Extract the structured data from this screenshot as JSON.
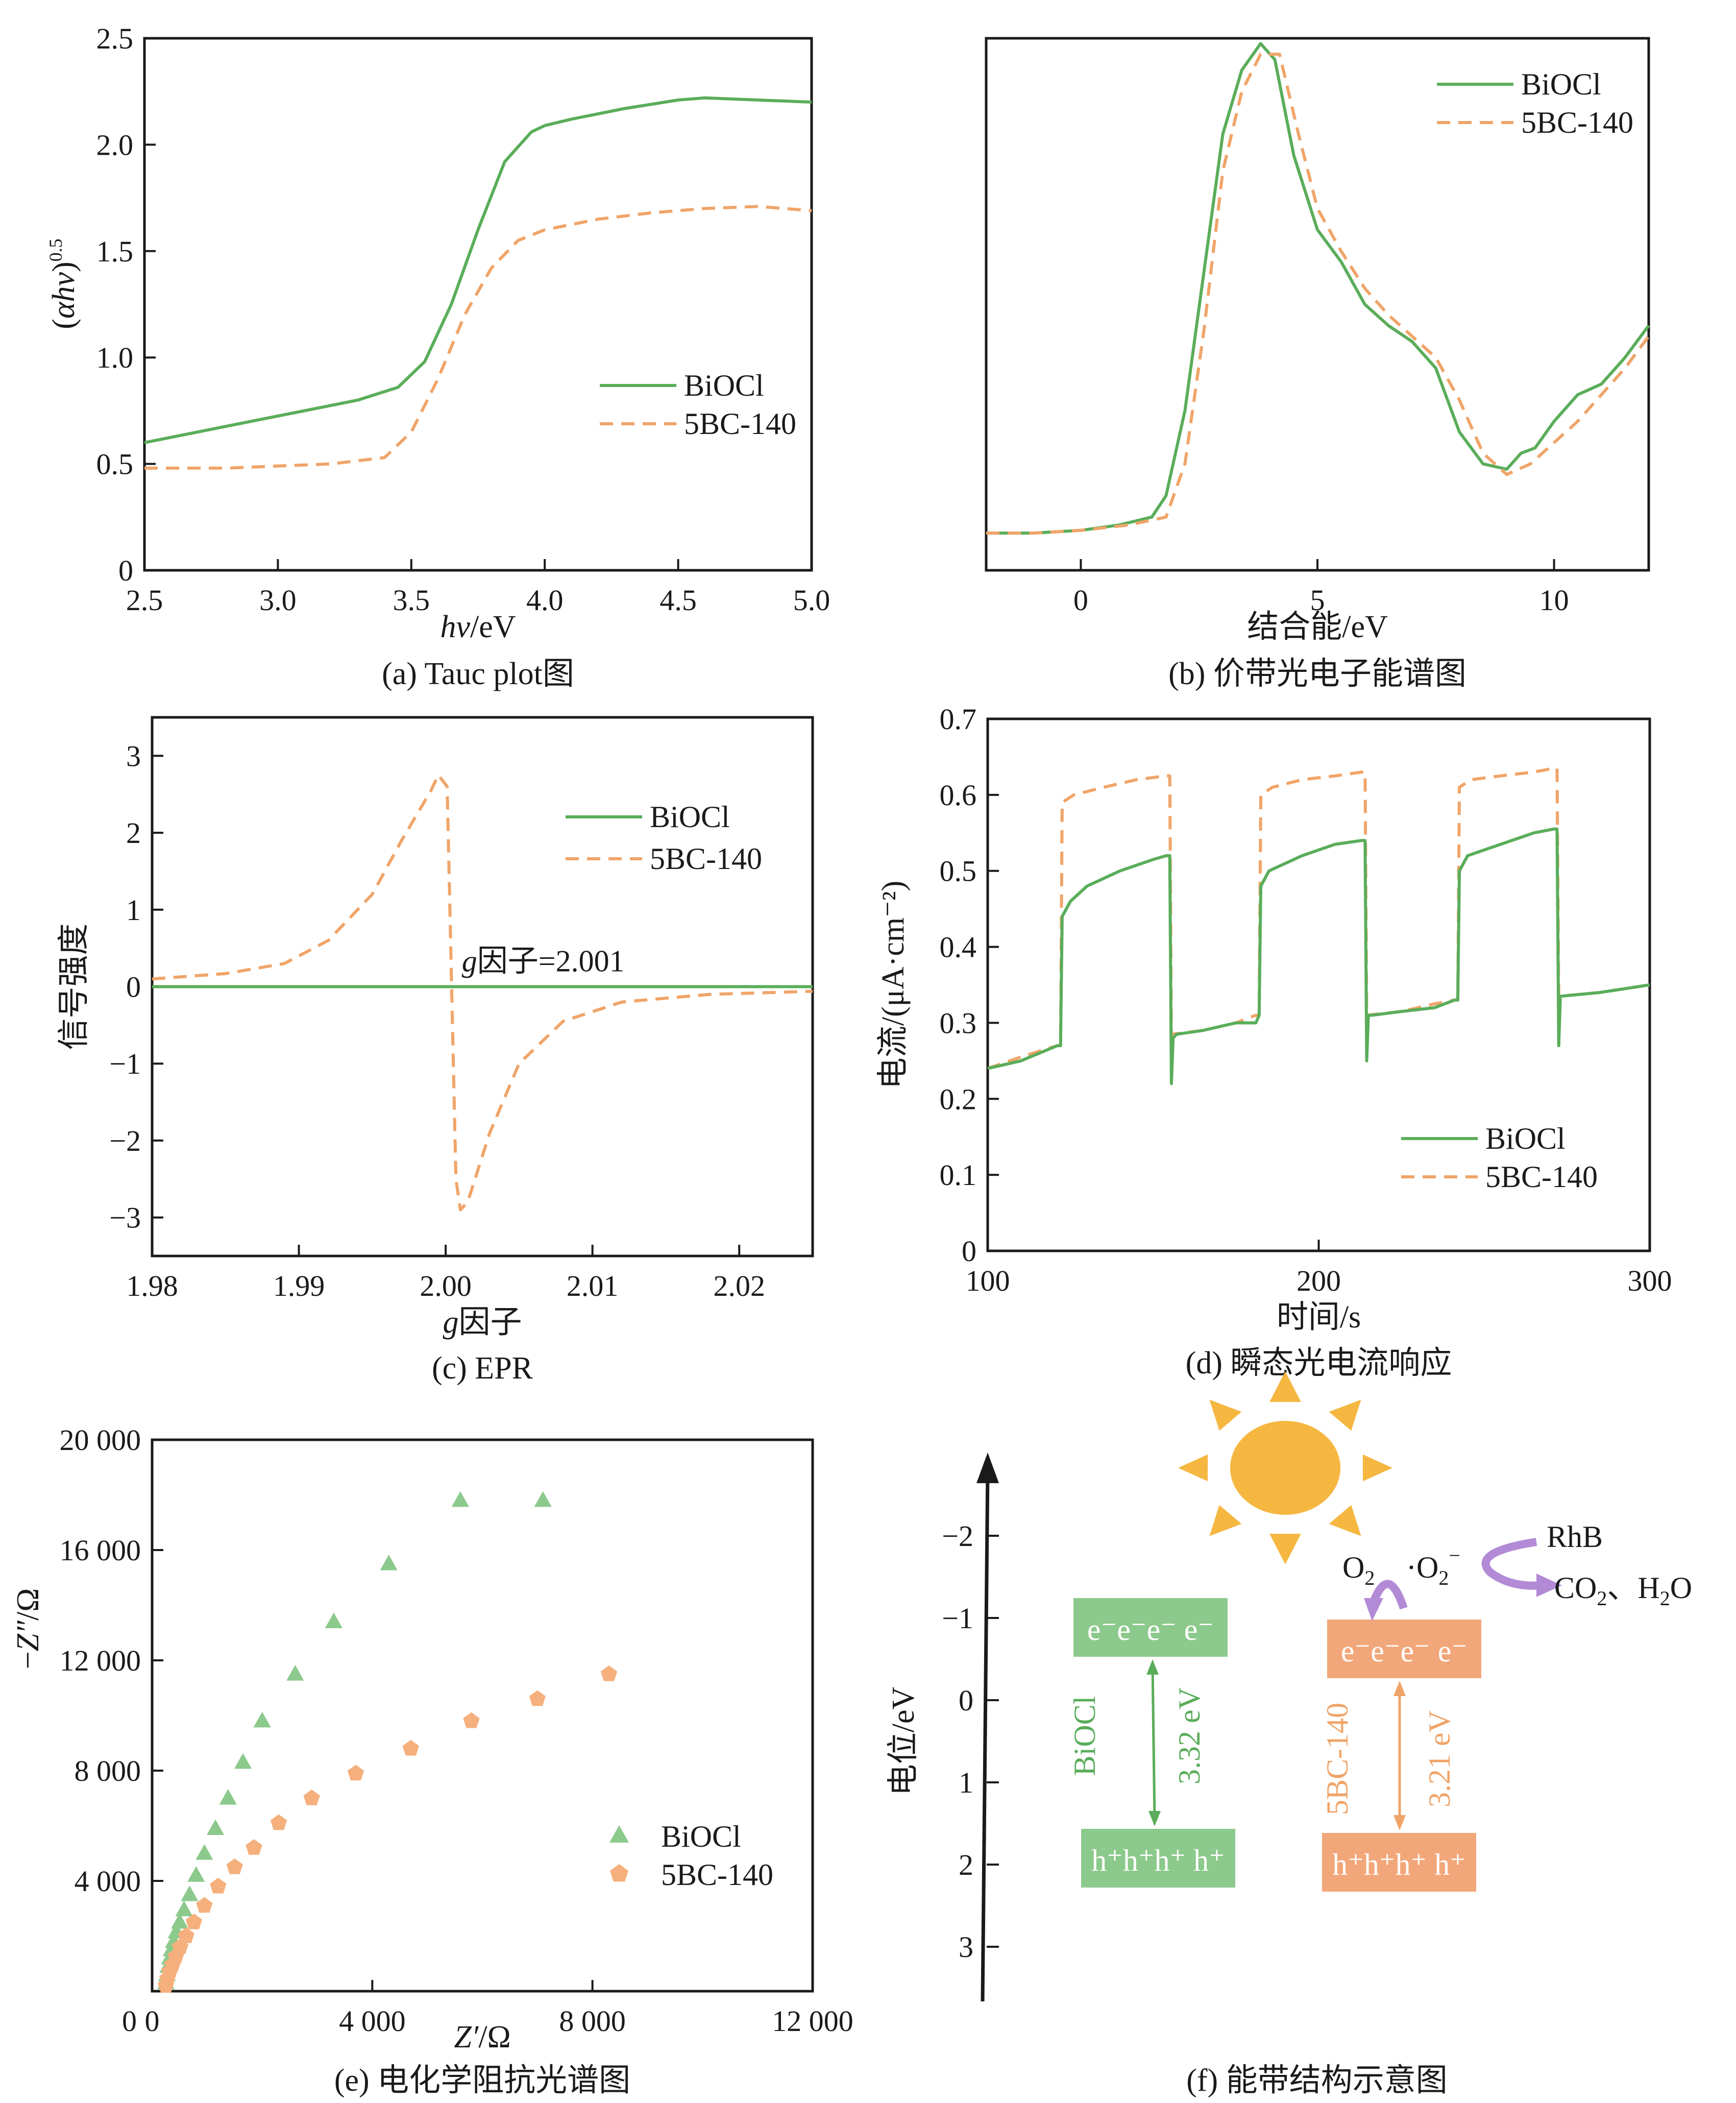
{
  "colors": {
    "green": "#5aad5a",
    "orange": "#f0a468",
    "green_marker": "#8cc98c",
    "orange_marker": "#f5b07d",
    "green_box": "#8cc98c",
    "orange_box": "#f2a77a",
    "sun": "#f5b740",
    "purple": "#b28ad6"
  },
  "chart_data": [
    {
      "id": "a",
      "type": "line",
      "title": "",
      "caption": "(a) Tauc plot图",
      "xlabel_italic": "hv",
      "xlabel_rest": "/eV",
      "ylabel_open": "(",
      "ylabel_italic": "αhv",
      "ylabel_close": ")",
      "ylabel_sup": "0.5",
      "xlim": [
        2.5,
        5.0
      ],
      "ylim": [
        0,
        2.5
      ],
      "xticks": [
        2.5,
        3.0,
        3.5,
        4.0,
        4.5,
        5.0
      ],
      "xticklabels": [
        "2.5",
        "3.0",
        "3.5",
        "4.0",
        "4.5",
        "5.0"
      ],
      "yticks": [
        0,
        0.5,
        1.0,
        1.5,
        2.0,
        2.5
      ],
      "yticklabels": [
        "0",
        "0.5",
        "1.0",
        "1.5",
        "2.0",
        "2.5"
      ],
      "series": [
        {
          "name": "BiOCl",
          "style": "solid",
          "x": [
            2.5,
            2.7,
            2.9,
            3.1,
            3.3,
            3.45,
            3.55,
            3.65,
            3.75,
            3.85,
            3.95,
            4.0,
            4.1,
            4.3,
            4.5,
            4.6,
            4.8,
            5.0
          ],
          "y": [
            0.6,
            0.65,
            0.7,
            0.75,
            0.8,
            0.86,
            0.98,
            1.25,
            1.6,
            1.92,
            2.06,
            2.09,
            2.12,
            2.17,
            2.21,
            2.22,
            2.21,
            2.2
          ]
        },
        {
          "name": "5BC-140",
          "style": "dashed",
          "x": [
            2.5,
            2.8,
            3.0,
            3.2,
            3.4,
            3.5,
            3.6,
            3.7,
            3.8,
            3.9,
            4.0,
            4.2,
            4.4,
            4.6,
            4.8,
            5.0
          ],
          "y": [
            0.48,
            0.48,
            0.49,
            0.5,
            0.53,
            0.65,
            0.9,
            1.2,
            1.42,
            1.55,
            1.6,
            1.65,
            1.68,
            1.7,
            1.71,
            1.69
          ]
        }
      ]
    },
    {
      "id": "b",
      "type": "line",
      "title": "",
      "caption": "(b) 价带光电子能谱图",
      "xlabel": "结合能/eV",
      "xlim": [
        -2,
        12
      ],
      "ylim": [
        0,
        1
      ],
      "xticks": [
        0,
        5,
        10
      ],
      "xticklabels": [
        "0",
        "5",
        "10"
      ],
      "yticks": [],
      "yticklabels": [],
      "series": [
        {
          "name": "BiOCl",
          "style": "solid",
          "x": [
            -2,
            -1,
            0,
            0.8,
            1.5,
            1.8,
            2.2,
            2.6,
            3.0,
            3.4,
            3.8,
            4.1,
            4.5,
            5.0,
            5.5,
            6.0,
            6.5,
            7.0,
            7.5,
            8.0,
            8.5,
            9.0,
            9.3,
            9.6,
            10.0,
            10.5,
            11.0,
            11.5,
            12.0
          ],
          "y": [
            0.07,
            0.07,
            0.075,
            0.085,
            0.1,
            0.14,
            0.3,
            0.56,
            0.82,
            0.94,
            0.99,
            0.96,
            0.78,
            0.64,
            0.58,
            0.5,
            0.46,
            0.43,
            0.38,
            0.26,
            0.2,
            0.19,
            0.22,
            0.23,
            0.28,
            0.33,
            0.35,
            0.4,
            0.46
          ]
        },
        {
          "name": "5BC-140",
          "style": "dashed",
          "x": [
            -2,
            -1,
            0,
            1.0,
            1.8,
            2.2,
            2.6,
            3.0,
            3.4,
            3.8,
            4.2,
            4.6,
            5.0,
            5.5,
            6.0,
            6.5,
            7.0,
            7.5,
            8.0,
            8.5,
            9.0,
            9.5,
            10.0,
            10.5,
            11.0,
            11.5,
            12.0
          ],
          "y": [
            0.07,
            0.07,
            0.075,
            0.085,
            0.1,
            0.2,
            0.45,
            0.75,
            0.9,
            0.97,
            0.97,
            0.82,
            0.68,
            0.6,
            0.53,
            0.48,
            0.44,
            0.4,
            0.32,
            0.22,
            0.18,
            0.2,
            0.24,
            0.28,
            0.33,
            0.38,
            0.44
          ]
        }
      ]
    },
    {
      "id": "c",
      "type": "line",
      "title": "",
      "caption": "(c) EPR",
      "xlabel_italic": "g",
      "xlabel_rest": "因子",
      "ylabel": "信号强度",
      "xlim": [
        1.98,
        2.025
      ],
      "ylim": [
        -3.5,
        3.5
      ],
      "xticks": [
        1.98,
        1.99,
        2.0,
        2.01,
        2.02
      ],
      "xticklabels": [
        "1.98",
        "1.99",
        "2.00",
        "2.01",
        "2.02"
      ],
      "yticks": [
        -3,
        -2,
        -1,
        0,
        1,
        2,
        3
      ],
      "yticklabels": [
        "−3",
        "−2",
        "−1",
        "0",
        "1",
        "2",
        "3"
      ],
      "annotation_italic": "g",
      "annotation_rest": "因子=2.001",
      "annotation_x": 2.0011,
      "annotation_y": 0.2,
      "series": [
        {
          "name": "BiOCl",
          "style": "solid",
          "x": [
            1.98,
            2.025
          ],
          "y": [
            0,
            0
          ]
        },
        {
          "name": "5BC-140",
          "style": "dashed",
          "x": [
            1.98,
            1.985,
            1.989,
            1.992,
            1.995,
            1.997,
            1.999,
            1.9995,
            2.0001,
            2.0007,
            2.001,
            2.0015,
            2.002,
            2.003,
            2.005,
            2.008,
            2.012,
            2.018,
            2.025
          ],
          "y": [
            0.1,
            0.17,
            0.3,
            0.6,
            1.2,
            1.9,
            2.55,
            2.75,
            2.6,
            -2.5,
            -2.9,
            -2.8,
            -2.5,
            -1.9,
            -1.0,
            -0.45,
            -0.2,
            -0.1,
            -0.06
          ]
        }
      ]
    },
    {
      "id": "d",
      "type": "line",
      "title": "",
      "caption": "(d) 瞬态光电流响应",
      "xlabel": "时间/s",
      "ylabel": "电流/(μA·cm⁻²)",
      "xlim": [
        100,
        300
      ],
      "ylim": [
        0,
        0.7
      ],
      "xticks": [
        100,
        200,
        300
      ],
      "xticklabels": [
        "100",
        "200",
        "300"
      ],
      "yticks": [
        0,
        0.1,
        0.2,
        0.3,
        0.4,
        0.5,
        0.6,
        0.7
      ],
      "yticklabels": [
        "0",
        "0.1",
        "0.2",
        "0.3",
        "0.4",
        "0.5",
        "0.6",
        "0.7"
      ],
      "series": [
        {
          "name": "BiOCl",
          "style": "solid",
          "x": [
            100,
            110,
            121,
            122,
            122.5,
            125,
            130,
            140,
            150,
            154,
            155,
            155.5,
            156,
            157,
            165,
            175,
            181,
            182,
            182.5,
            185,
            195,
            205,
            213,
            214,
            214.5,
            215,
            216,
            225,
            235,
            241,
            242,
            242.5,
            245,
            255,
            265,
            271,
            272,
            272.5,
            273,
            285,
            300
          ],
          "y": [
            0.24,
            0.25,
            0.27,
            0.27,
            0.44,
            0.46,
            0.48,
            0.5,
            0.515,
            0.52,
            0.52,
            0.22,
            0.28,
            0.285,
            0.29,
            0.3,
            0.3,
            0.31,
            0.48,
            0.5,
            0.52,
            0.535,
            0.54,
            0.54,
            0.25,
            0.31,
            0.31,
            0.315,
            0.32,
            0.33,
            0.33,
            0.5,
            0.52,
            0.535,
            0.55,
            0.555,
            0.555,
            0.27,
            0.335,
            0.34,
            0.35
          ]
        },
        {
          "name": "5BC-140",
          "style": "dashed",
          "x": [
            100,
            110,
            121,
            122,
            122.5,
            126,
            135,
            145,
            154,
            155,
            155.5,
            165,
            175,
            181,
            182,
            182.5,
            186,
            195,
            205,
            213,
            214,
            214.5,
            225,
            235,
            241,
            242,
            242.5,
            246,
            255,
            265,
            271,
            272,
            272.5,
            285,
            300
          ],
          "y": [
            0.24,
            0.255,
            0.27,
            0.27,
            0.59,
            0.6,
            0.61,
            0.62,
            0.625,
            0.625,
            0.285,
            0.29,
            0.3,
            0.31,
            0.31,
            0.6,
            0.61,
            0.62,
            0.625,
            0.63,
            0.63,
            0.31,
            0.315,
            0.325,
            0.33,
            0.33,
            0.61,
            0.62,
            0.625,
            0.63,
            0.635,
            0.635,
            0.335,
            0.34,
            0.35
          ]
        }
      ]
    },
    {
      "id": "e",
      "type": "scatter",
      "title": "",
      "caption": "(e) 电化学阻抗光谱图",
      "xlabel_italic": "Z′",
      "xlabel_rest": "/Ω",
      "ylabel_pre": "−",
      "ylabel_italic": "Z″",
      "ylabel_rest": "/Ω",
      "xlim": [
        0,
        12000
      ],
      "ylim": [
        0,
        20000
      ],
      "xticks": [
        0,
        4000,
        8000,
        12000
      ],
      "xticklabels": [
        "0",
        "4 000",
        "8 000",
        "12 000"
      ],
      "yticks": [
        4000,
        8000,
        12000,
        16000,
        20000
      ],
      "yticklabels": [
        "4 000",
        "8 000",
        "12 000",
        "16 000",
        "20 000"
      ],
      "series": [
        {
          "name": "BiOCl",
          "marker": "triangle",
          "x": [
            250,
            270,
            290,
            320,
            350,
            390,
            440,
            500,
            580,
            680,
            800,
            950,
            1150,
            1380,
            1650,
            2000,
            2600,
            3300,
            4300,
            5600,
            7100
          ],
          "y": [
            300,
            600,
            900,
            1200,
            1500,
            1800,
            2150,
            2500,
            2950,
            3500,
            4200,
            5000,
            5900,
            7000,
            8300,
            9800,
            11500,
            13400,
            15500,
            17800,
            17800
          ]
        },
        {
          "name": "5BC-140",
          "marker": "pentagon",
          "x": [
            250,
            280,
            320,
            370,
            430,
            510,
            620,
            760,
            950,
            1200,
            1500,
            1850,
            2300,
            2900,
            3700,
            4700,
            5800,
            7000,
            8300
          ],
          "y": [
            200,
            450,
            700,
            950,
            1250,
            1600,
            2000,
            2500,
            3100,
            3800,
            4500,
            5200,
            6100,
            7000,
            7900,
            8800,
            9800,
            10600,
            11500
          ]
        }
      ]
    }
  ],
  "panel_f": {
    "caption": "(f) 能带结构示意图",
    "ylabel": "电位/eV",
    "ylim": [
      -3,
      3.5
    ],
    "yticks": [
      -2,
      -1,
      0,
      1,
      2,
      3
    ],
    "yticklabels": [
      "−2",
      "−1",
      "0",
      "1",
      "2",
      "3"
    ],
    "biocl": {
      "name": "BiOCl",
      "cb": "e⁻e⁻e⁻  e⁻",
      "vb": "h⁺h⁺h⁺  h⁺",
      "gap": "3.32 eV"
    },
    "bc": {
      "name": "5BC-140",
      "cb": "e⁻e⁻e⁻  e⁻",
      "vb": "h⁺h⁺h⁺  h⁺",
      "gap": "3.21 eV"
    },
    "o2": "O",
    "o2_sub": "2",
    "superoxide_pre": "·O",
    "superoxide_sub": "2",
    "superoxide_sup": "−",
    "rhb": "RhB",
    "products_a": "CO",
    "products_a_sub": "2",
    "products_sep": "、",
    "products_b": "H",
    "products_b_sub": "2",
    "products_c": "O"
  }
}
